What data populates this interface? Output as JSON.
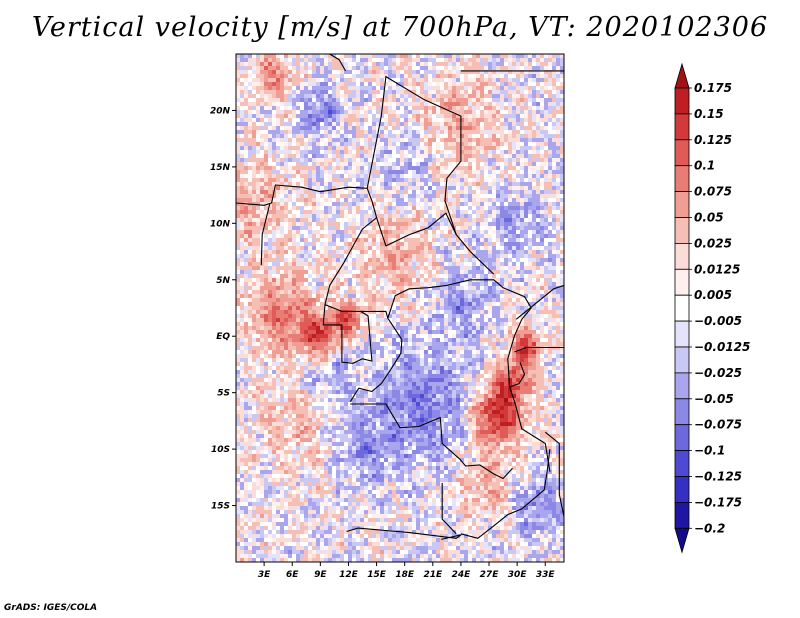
{
  "title": "Vertical velocity [m/s] at 700hPa, VT: 2020102306",
  "credit": "GrADS: IGES/COLA",
  "chart_data": {
    "type": "heatmap",
    "title": "Vertical velocity [m/s] at 700hPa, VT: 2020102306",
    "variable": "Vertical velocity",
    "units": "m/s",
    "level": "700hPa",
    "valid_time": "2020102306",
    "x_range": [
      0,
      35
    ],
    "y_range": [
      -20,
      25
    ],
    "x_ticks": [
      3,
      6,
      9,
      12,
      15,
      18,
      21,
      24,
      27,
      30,
      33
    ],
    "x_tick_labels": [
      "3E",
      "6E",
      "9E",
      "12E",
      "15E",
      "18E",
      "21E",
      "24E",
      "27E",
      "30E",
      "33E"
    ],
    "y_ticks": [
      20,
      15,
      10,
      5,
      0,
      -5,
      -10,
      -15
    ],
    "y_tick_labels": [
      "20N",
      "15N",
      "10N",
      "5N",
      "EQ",
      "5S",
      "10S",
      "15S"
    ],
    "colorbar": {
      "orientation": "vertical",
      "levels": [
        0.175,
        0.15,
        0.125,
        0.1,
        0.075,
        0.05,
        0.025,
        0.0125,
        0.005,
        -0.005,
        -0.0125,
        -0.025,
        -0.05,
        -0.075,
        -0.1,
        -0.125,
        -0.175,
        -0.2
      ],
      "level_labels": [
        "0.175",
        "0.15",
        "0.125",
        "0.1",
        "0.075",
        "0.05",
        "0.025",
        "0.0125",
        "0.005",
        "−0.005",
        "−0.0125",
        "−0.025",
        "−0.05",
        "−0.075",
        "−0.1",
        "−0.125",
        "−0.175",
        "−0.2"
      ],
      "colors": [
        "#a01216",
        "#bf1e24",
        "#d23a3a",
        "#df5b57",
        "#e87d75",
        "#f09e94",
        "#f6bfb6",
        "#fbdcd6",
        "#fff0ee",
        "#ffffff",
        "#e4e3fb",
        "#c9c7f4",
        "#a9a6ee",
        "#8c88e6",
        "#6d69dc",
        "#4f4ad2",
        "#3530c1",
        "#1f17a3",
        "#120c8a"
      ]
    }
  }
}
